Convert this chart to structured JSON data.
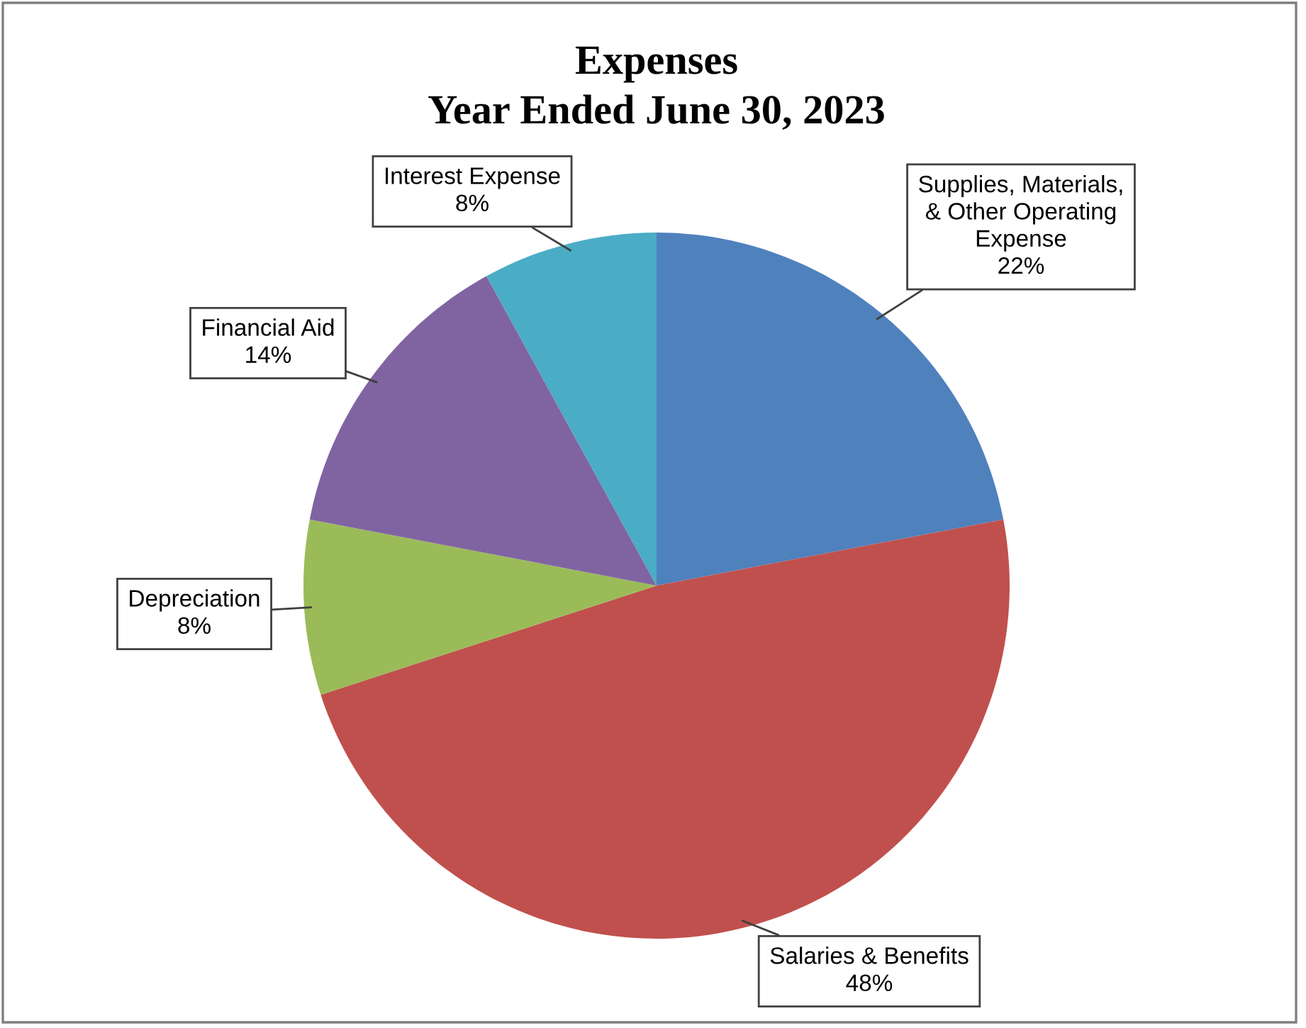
{
  "chart_data": {
    "type": "pie",
    "title": "Expenses",
    "subtitle": "Year Ended June 30, 2023",
    "categories": [
      "Supplies, Materials,\n& Other Operating\nExpense",
      "Salaries & Benefits",
      "Depreciation",
      "Financial Aid",
      "Interest Expense"
    ],
    "values": [
      22,
      48,
      8,
      14,
      8
    ],
    "value_labels": [
      "22%",
      "48%",
      "8%",
      "14%",
      "8%"
    ],
    "colors": [
      "#4f81bd",
      "#c0504d",
      "#9bbb59",
      "#8064a2",
      "#4bacc6"
    ],
    "legend": false
  }
}
